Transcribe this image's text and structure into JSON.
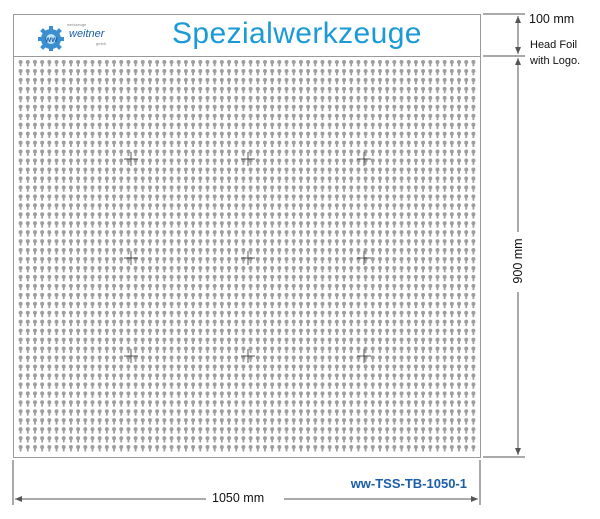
{
  "board": {
    "title": "Spezialwerkzeuge",
    "logo_text": "weitner",
    "logo_sub_top": "werkzeuge",
    "logo_sub_bottom": "gmbh",
    "model_code": "ww-TSS-TB-1050-1"
  },
  "dimensions": {
    "head_height": "100 mm",
    "head_note_line1": "Head Foil",
    "head_note_line2": "with Logo.",
    "panel_height": "900 mm",
    "width": "1050 mm"
  },
  "colors": {
    "title": "#1a9ad6",
    "code": "#1c5fa8",
    "hole": "#9e9e9e",
    "border": "#9a9a9a"
  }
}
